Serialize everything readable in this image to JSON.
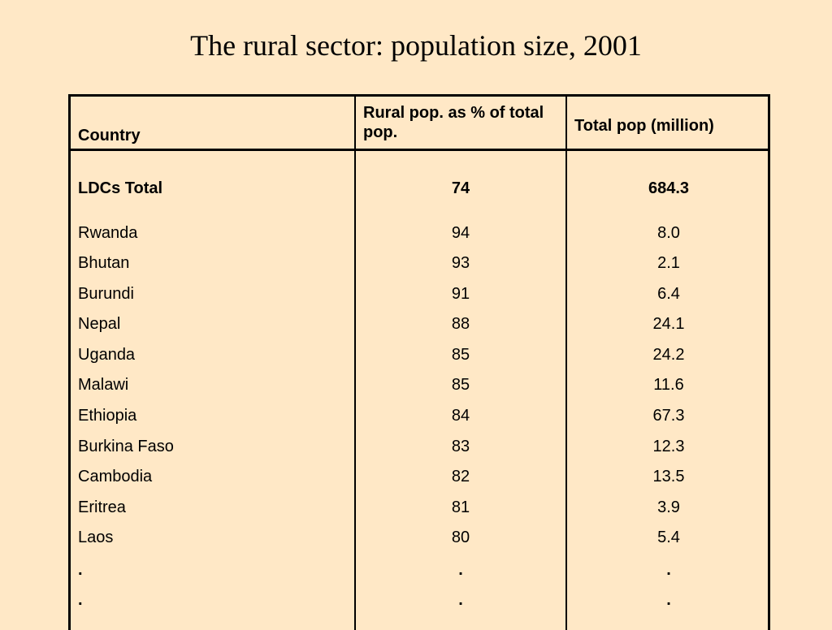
{
  "title": "The rural sector: population size, 2001",
  "table": {
    "headers": {
      "country": "Country",
      "rural_pct": "Rural pop. as % of total pop.",
      "total_pop": "Total pop (million)"
    },
    "summary": {
      "country": "LDCs Total",
      "rural_pct": "74",
      "total_pop": "684.3"
    },
    "rows": [
      {
        "country": "Rwanda",
        "rural_pct": "94",
        "total_pop": "8.0"
      },
      {
        "country": "Bhutan",
        "rural_pct": "93",
        "total_pop": "2.1"
      },
      {
        "country": "Burundi",
        "rural_pct": "91",
        "total_pop": "6.4"
      },
      {
        "country": "Nepal",
        "rural_pct": "88",
        "total_pop": "24.1"
      },
      {
        "country": "Uganda",
        "rural_pct": "85",
        "total_pop": "24.2"
      },
      {
        "country": "Malawi",
        "rural_pct": "85",
        "total_pop": "11.6"
      },
      {
        "country": "Ethiopia",
        "rural_pct": "84",
        "total_pop": "67.3"
      },
      {
        "country": "Burkina Faso",
        "rural_pct": "83",
        "total_pop": "12.3"
      },
      {
        "country": "Cambodia",
        "rural_pct": "82",
        "total_pop": "13.5"
      },
      {
        "country": "Eritrea",
        "rural_pct": "81",
        "total_pop": "3.9"
      },
      {
        "country": "Laos",
        "rural_pct": "80",
        "total_pop": "5.4"
      },
      {
        "country": ".",
        "rural_pct": ".",
        "total_pop": "."
      },
      {
        "country": ".",
        "rural_pct": ".",
        "total_pop": "."
      }
    ]
  }
}
